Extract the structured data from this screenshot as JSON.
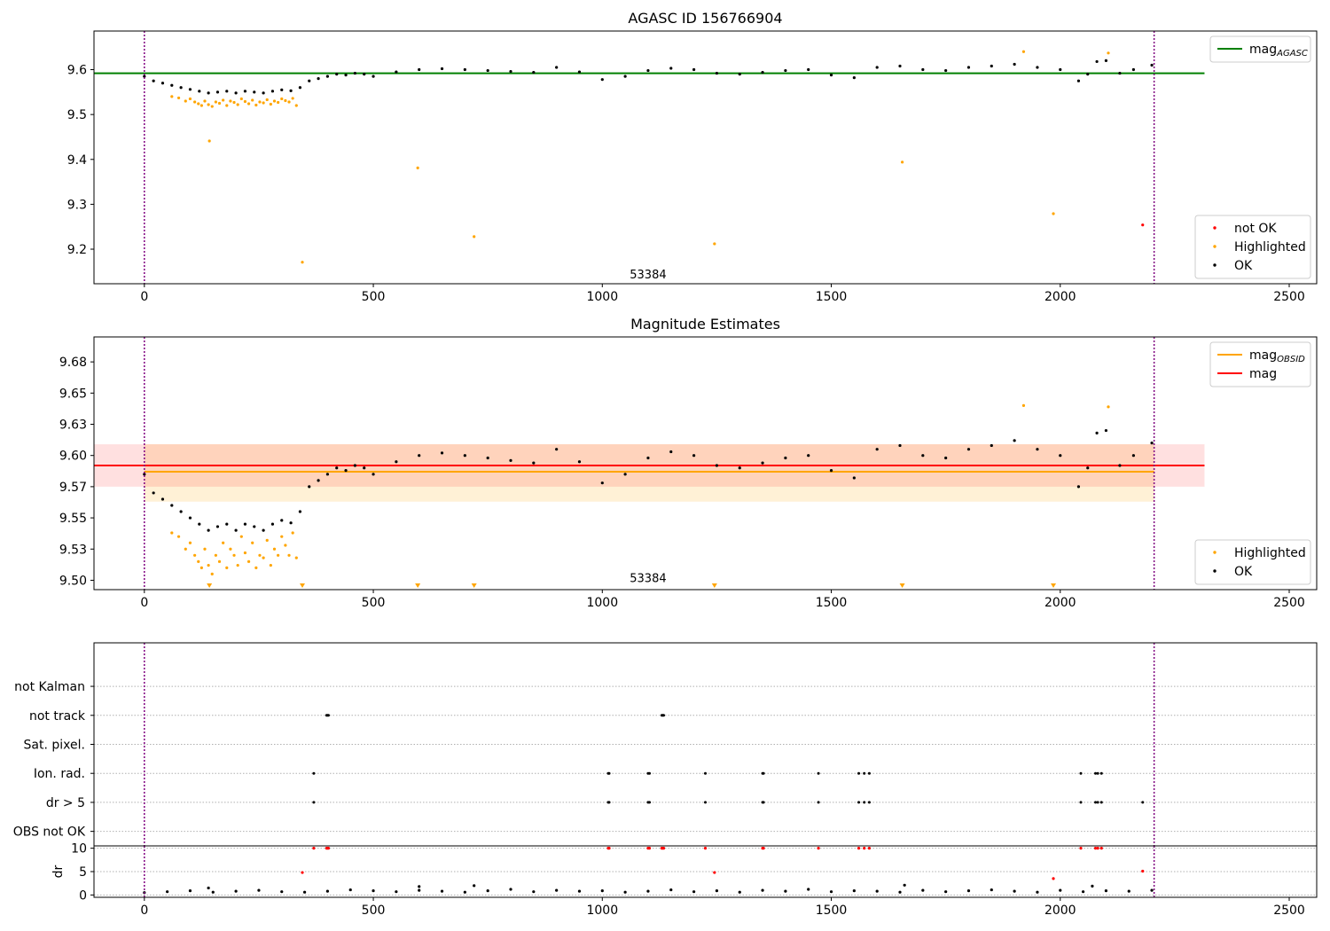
{
  "chart_data": [
    {
      "type": "scatter",
      "title": "AGASC ID 156766904",
      "xlim": [
        -110,
        2560
      ],
      "ylim": [
        9.123,
        9.686
      ],
      "xticks": [
        0,
        500,
        1000,
        1500,
        2000,
        2500
      ],
      "yticks": [
        9.2,
        9.3,
        9.4,
        9.5,
        9.6
      ],
      "grid": false,
      "annotation": {
        "text": "53384",
        "x": 1100,
        "y": 9.135
      },
      "vlines": [
        0,
        2205
      ],
      "hlines": [
        {
          "name": "mag_AGASC",
          "y": 9.592,
          "x": [
            -110,
            2315
          ],
          "color": "#008000"
        }
      ],
      "legends": [
        {
          "placement": "top-right",
          "entries": [
            {
              "label": "mag",
              "sub": "AGASC",
              "color": "#008000",
              "kind": "line"
            }
          ]
        },
        {
          "placement": "bottom-right",
          "entries": [
            {
              "label": "not OK",
              "color": "#ff0000",
              "kind": "dot"
            },
            {
              "label": "Highlighted",
              "color": "#ffa500",
              "kind": "dot"
            },
            {
              "label": "OK",
              "color": "#000000",
              "kind": "dot"
            }
          ]
        }
      ],
      "series": [
        {
          "name": "not OK",
          "color": "#ff0000",
          "x": [
            2180
          ],
          "y": [
            9.254
          ]
        },
        {
          "name": "Highlighted",
          "color": "#ffa500",
          "x": [
            60,
            75,
            90,
            100,
            110,
            118,
            125,
            132,
            140,
            148,
            156,
            164,
            172,
            180,
            188,
            196,
            204,
            212,
            220,
            228,
            236,
            244,
            252,
            260,
            268,
            276,
            284,
            292,
            300,
            308,
            316,
            324,
            332,
            142,
            345,
            597,
            720,
            1245,
            1655,
            1920,
            1985,
            2105
          ],
          "y": [
            9.54,
            9.537,
            9.53,
            9.535,
            9.528,
            9.524,
            9.52,
            9.53,
            9.522,
            9.518,
            9.528,
            9.525,
            9.532,
            9.52,
            9.53,
            9.527,
            9.522,
            9.535,
            9.529,
            9.524,
            9.532,
            9.521,
            9.528,
            9.526,
            9.533,
            9.523,
            9.53,
            9.527,
            9.535,
            9.531,
            9.528,
            9.536,
            9.52,
            9.441,
            9.171,
            9.381,
            9.228,
            9.212,
            9.394,
            9.64,
            9.279,
            9.637
          ]
        },
        {
          "name": "OK",
          "color": "#000000",
          "x": [
            0,
            20,
            40,
            60,
            80,
            100,
            120,
            140,
            160,
            180,
            200,
            220,
            240,
            260,
            280,
            300,
            320,
            340,
            360,
            380,
            400,
            420,
            440,
            460,
            480,
            500,
            550,
            600,
            650,
            700,
            750,
            800,
            850,
            900,
            950,
            1000,
            1050,
            1100,
            1150,
            1200,
            1250,
            1300,
            1350,
            1400,
            1450,
            1500,
            1550,
            1600,
            1650,
            1700,
            1750,
            1800,
            1850,
            1900,
            1950,
            2000,
            2040,
            2060,
            2080,
            2100,
            2130,
            2160,
            2200
          ],
          "y": [
            9.585,
            9.575,
            9.57,
            9.565,
            9.56,
            9.556,
            9.552,
            9.548,
            9.55,
            9.552,
            9.548,
            9.552,
            9.55,
            9.548,
            9.552,
            9.555,
            9.553,
            9.56,
            9.575,
            9.58,
            9.585,
            9.59,
            9.588,
            9.592,
            9.59,
            9.585,
            9.595,
            9.6,
            9.602,
            9.6,
            9.598,
            9.596,
            9.594,
            9.605,
            9.595,
            9.578,
            9.585,
            9.598,
            9.603,
            9.6,
            9.592,
            9.59,
            9.594,
            9.598,
            9.6,
            9.588,
            9.582,
            9.605,
            9.608,
            9.6,
            9.598,
            9.605,
            9.608,
            9.612,
            9.605,
            9.6,
            9.575,
            9.59,
            9.618,
            9.62,
            9.592,
            9.6,
            9.61
          ]
        }
      ]
    },
    {
      "type": "scatter",
      "title": "Magnitude Estimates",
      "xlim": [
        -110,
        2560
      ],
      "ylim": [
        9.4925,
        9.695
      ],
      "xticks": [
        0,
        500,
        1000,
        1500,
        2000,
        2500
      ],
      "yticks": [
        9.5,
        9.525,
        9.55,
        9.575,
        9.6,
        9.625,
        9.65,
        9.675
      ],
      "grid": false,
      "annotation": {
        "text": "53384",
        "x": 1100,
        "y": 9.4985
      },
      "vlines": [
        0,
        2205
      ],
      "bands": [
        {
          "name": "mag_OBSID",
          "y": [
            9.563,
            9.609
          ],
          "x": [
            0,
            2205
          ],
          "color": "#ffa500"
        },
        {
          "name": "mag",
          "y": [
            9.575,
            9.609
          ],
          "x": [
            -110,
            2315
          ],
          "color": "#ff0000"
        }
      ],
      "hlines": [
        {
          "name": "mag_OBSID",
          "y": 9.587,
          "x": [
            0,
            2205
          ],
          "color": "#ffa500"
        },
        {
          "name": "mag",
          "y": 9.592,
          "x": [
            -110,
            2315
          ],
          "color": "#ff0000"
        }
      ],
      "markers_bottom": {
        "color": "#ffa500",
        "x": [
          142,
          345,
          597,
          720,
          1245,
          1655,
          1985
        ]
      },
      "legends": [
        {
          "placement": "top-right",
          "entries": [
            {
              "label": "mag",
              "sub": "OBSID",
              "color": "#ffa500",
              "kind": "line"
            },
            {
              "label": "mag",
              "sub": "",
              "color": "#ff0000",
              "kind": "line"
            }
          ]
        },
        {
          "placement": "bottom-right",
          "entries": [
            {
              "label": "Highlighted",
              "color": "#ffa500",
              "kind": "dot"
            },
            {
              "label": "OK",
              "color": "#000000",
              "kind": "dot"
            }
          ]
        }
      ],
      "series": [
        {
          "name": "Highlighted",
          "color": "#ffa500",
          "x": [
            60,
            75,
            90,
            100,
            110,
            118,
            125,
            132,
            140,
            148,
            156,
            164,
            172,
            180,
            188,
            196,
            204,
            212,
            220,
            228,
            236,
            244,
            252,
            260,
            268,
            276,
            284,
            292,
            300,
            308,
            316,
            324,
            332,
            1920,
            2105
          ],
          "y": [
            9.538,
            9.535,
            9.525,
            9.53,
            9.52,
            9.515,
            9.51,
            9.525,
            9.512,
            9.505,
            9.52,
            9.515,
            9.53,
            9.51,
            9.525,
            9.52,
            9.512,
            9.535,
            9.522,
            9.515,
            9.53,
            9.51,
            9.52,
            9.518,
            9.532,
            9.512,
            9.525,
            9.52,
            9.535,
            9.528,
            9.52,
            9.538,
            9.518,
            9.64,
            9.639
          ]
        },
        {
          "name": "OK",
          "color": "#000000",
          "x": [
            0,
            20,
            40,
            60,
            80,
            100,
            120,
            140,
            160,
            180,
            200,
            220,
            240,
            260,
            280,
            300,
            320,
            340,
            360,
            380,
            400,
            420,
            440,
            460,
            480,
            500,
            550,
            600,
            650,
            700,
            750,
            800,
            850,
            900,
            950,
            1000,
            1050,
            1100,
            1150,
            1200,
            1250,
            1300,
            1350,
            1400,
            1450,
            1500,
            1550,
            1600,
            1650,
            1700,
            1750,
            1800,
            1850,
            1900,
            1950,
            2000,
            2040,
            2060,
            2080,
            2100,
            2130,
            2160,
            2200
          ],
          "y": [
            9.585,
            9.57,
            9.565,
            9.56,
            9.555,
            9.55,
            9.545,
            9.54,
            9.543,
            9.545,
            9.54,
            9.545,
            9.543,
            9.54,
            9.545,
            9.548,
            9.546,
            9.555,
            9.575,
            9.58,
            9.585,
            9.59,
            9.588,
            9.592,
            9.59,
            9.585,
            9.595,
            9.6,
            9.602,
            9.6,
            9.598,
            9.596,
            9.594,
            9.605,
            9.595,
            9.578,
            9.585,
            9.598,
            9.603,
            9.6,
            9.592,
            9.59,
            9.594,
            9.598,
            9.6,
            9.588,
            9.582,
            9.605,
            9.608,
            9.6,
            9.598,
            9.605,
            9.608,
            9.612,
            9.605,
            9.6,
            9.575,
            9.59,
            9.618,
            9.62,
            9.592,
            9.6,
            9.61
          ]
        }
      ]
    },
    {
      "type": "scatter",
      "title": "",
      "xlim": [
        -110,
        2560
      ],
      "ylim": [
        -0.5,
        6.5
      ],
      "xticks": [],
      "grid": true,
      "vlines": [
        0,
        2205
      ],
      "rows": [
        "not Kalman",
        "not track",
        "Sat. pixel.",
        "Ion. rad.",
        "dr > 5",
        "OBS not OK"
      ],
      "series": [
        {
          "name": "not track",
          "color": "#000000",
          "x": [
            398,
            400,
            402,
            1130,
            1132,
            1134
          ]
        },
        {
          "name": "Ion. rad.",
          "color": "#000000",
          "x": [
            370,
            1013,
            1015,
            1100,
            1103,
            1225,
            1350,
            1352,
            1472,
            1560,
            1572,
            1583,
            2045,
            2077,
            2082,
            2090
          ]
        },
        {
          "name": "dr > 5",
          "color": "#000000",
          "x": [
            370,
            1013,
            1015,
            1100,
            1103,
            1225,
            1350,
            1352,
            1472,
            1560,
            1572,
            1583,
            2045,
            2077,
            2082,
            2090,
            2180
          ]
        }
      ]
    },
    {
      "type": "scatter",
      "title": "",
      "xlim": [
        -110,
        2560
      ],
      "ylim": [
        -0.5,
        10.5
      ],
      "xticks": [
        0,
        500,
        1000,
        1500,
        2000,
        2500
      ],
      "yticks": [
        0,
        5,
        10
      ],
      "ylabel": "dr",
      "grid": true,
      "vlines": [
        0,
        2205
      ],
      "series": [
        {
          "name": "dr > 5",
          "color": "#ff0000",
          "x": [
            370,
            398,
            400,
            402,
            1013,
            1015,
            1100,
            1103,
            1130,
            1132,
            1134,
            1225,
            1350,
            1352,
            1472,
            1560,
            1572,
            1583,
            2045,
            2077,
            2082,
            2090,
            345,
            1245,
            1985,
            2180
          ],
          "y": [
            10,
            10,
            10,
            10,
            10,
            10,
            10,
            10,
            10,
            10,
            10,
            10,
            10,
            10,
            10,
            10,
            10,
            10,
            10,
            10,
            10,
            10,
            4.8,
            4.8,
            3.5,
            5.1
          ]
        },
        {
          "name": "dr",
          "color": "#000000",
          "x": [
            0,
            50,
            100,
            150,
            200,
            250,
            300,
            350,
            400,
            450,
            500,
            550,
            600,
            650,
            700,
            750,
            800,
            850,
            900,
            950,
            1000,
            1050,
            1100,
            1150,
            1200,
            1250,
            1300,
            1350,
            1400,
            1450,
            1500,
            1550,
            1600,
            1650,
            1700,
            1750,
            1800,
            1850,
            1900,
            1950,
            2000,
            2050,
            2100,
            2150,
            2200,
            140,
            600,
            720,
            1660,
            2070
          ],
          "y": [
            0.5,
            0.7,
            0.9,
            0.6,
            0.8,
            1.0,
            0.7,
            0.6,
            0.8,
            1.1,
            0.9,
            0.7,
            1.0,
            0.8,
            0.6,
            0.9,
            1.2,
            0.7,
            1.0,
            0.8,
            0.9,
            0.6,
            0.8,
            1.1,
            0.7,
            0.9,
            0.6,
            1.0,
            0.8,
            1.2,
            0.7,
            0.9,
            0.8,
            0.6,
            1.0,
            0.7,
            0.9,
            1.1,
            0.8,
            0.6,
            1.0,
            0.7,
            0.9,
            0.8,
            1.0,
            1.5,
            1.8,
            2.0,
            2.1,
            1.9
          ]
        }
      ]
    }
  ]
}
